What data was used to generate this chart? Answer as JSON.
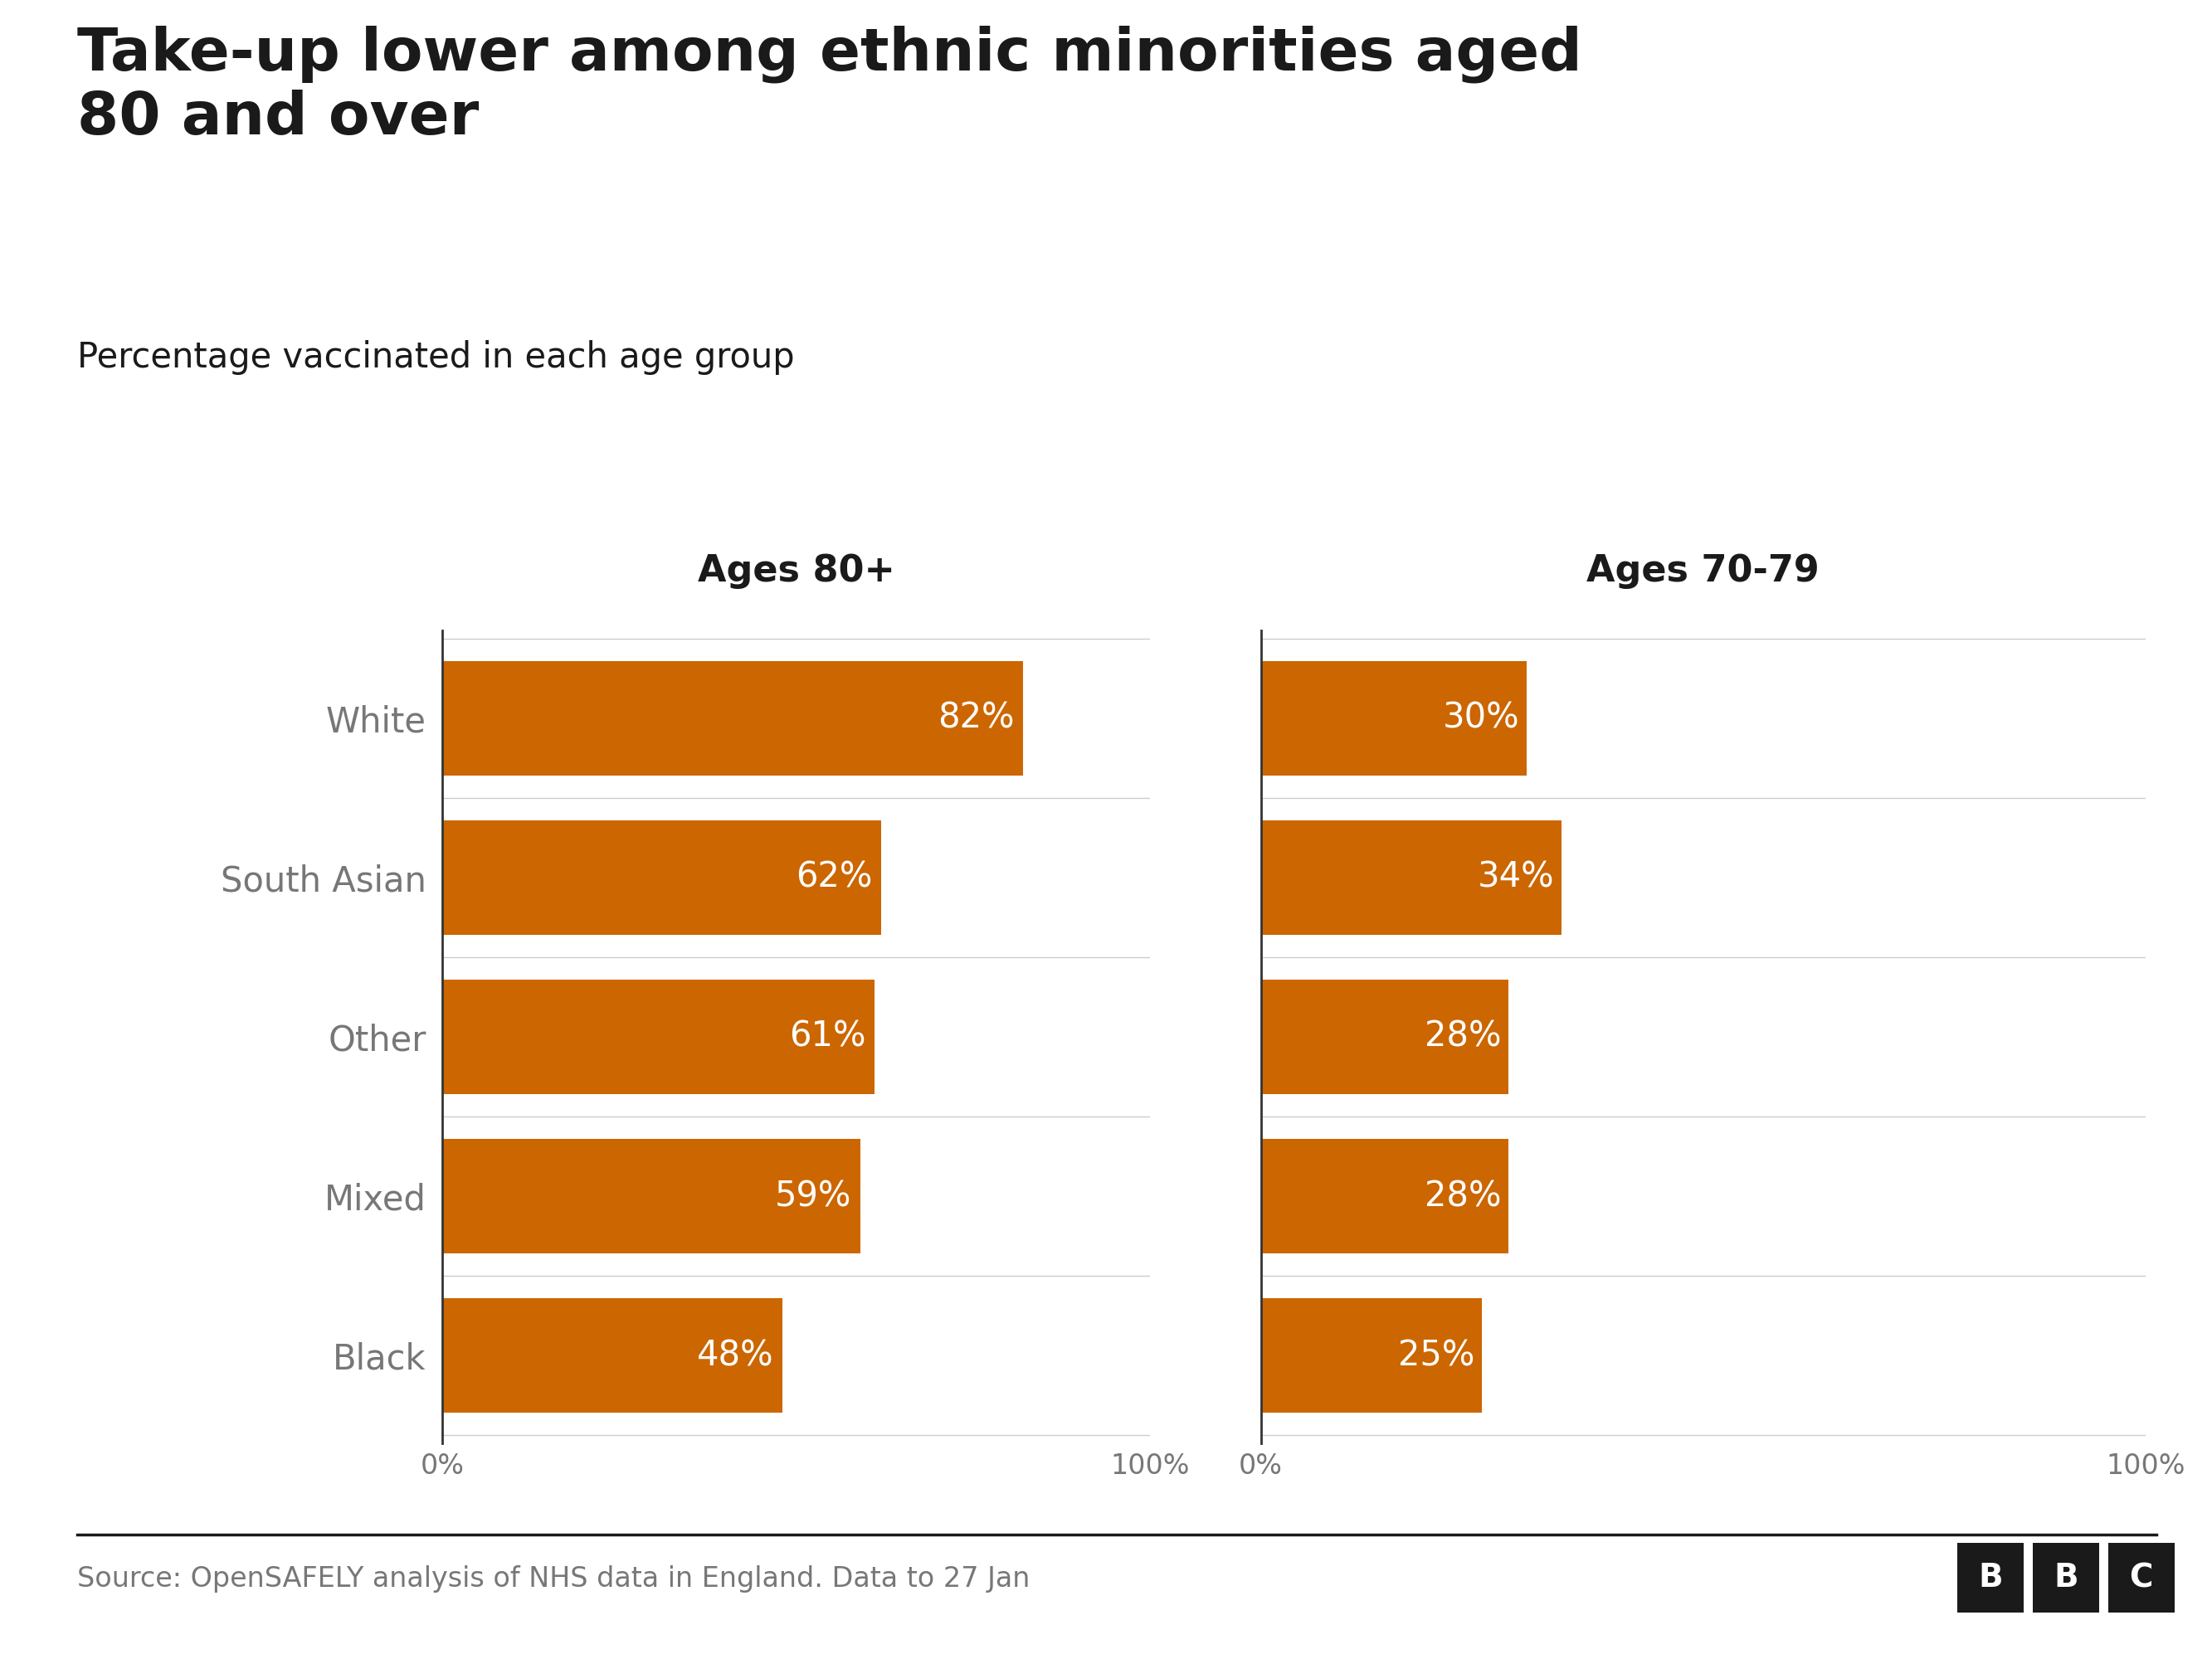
{
  "title_line1": "Take-up lower among ethnic minorities aged",
  "title_line2": "80 and over",
  "subtitle": "Percentage vaccinated in each age group",
  "group1_label": "Ages 80+",
  "group2_label": "Ages 70-79",
  "categories": [
    "White",
    "South Asian",
    "Other",
    "Mixed",
    "Black"
  ],
  "values_80plus": [
    82,
    62,
    61,
    59,
    48
  ],
  "values_70_79": [
    30,
    34,
    28,
    28,
    25
  ],
  "bar_color": "#CC6600",
  "text_color_dark": "#1a1a1a",
  "text_color_gray": "#777777",
  "background_color": "#ffffff",
  "source_text": "Source: OpenSAFELY analysis of NHS data in England. Data to 27 Jan",
  "title_fontsize": 52,
  "subtitle_fontsize": 30,
  "group_label_fontsize": 32,
  "category_fontsize": 30,
  "bar_label_fontsize": 30,
  "source_fontsize": 24,
  "tick_fontsize": 24,
  "grid_color": "#cccccc",
  "spine_color": "#333333"
}
